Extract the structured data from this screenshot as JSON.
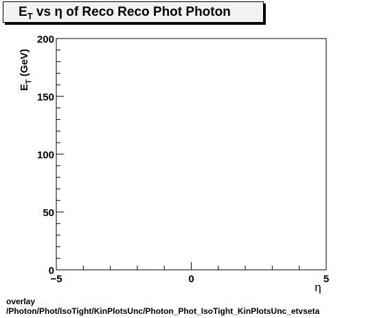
{
  "chart_data": {
    "type": "scatter",
    "title": "E_T vs  η of Reco Reco Phot Photon",
    "title_parts": {
      "main": "E",
      "sub": "T",
      "rest": " vs  η of Reco Reco Phot Photon"
    },
    "xlabel": "η",
    "ylabel_parts": {
      "main": "E",
      "sub": "T",
      "rest": " (GeV)"
    },
    "xlim": [
      -5,
      5
    ],
    "ylim": [
      0,
      200
    ],
    "xticks": [
      -5,
      0,
      5
    ],
    "xtick_labels": [
      "−5",
      "0",
      "5"
    ],
    "yticks": [
      0,
      50,
      100,
      150,
      200
    ],
    "ytick_labels": [
      "0",
      "50",
      "100",
      "150",
      "200"
    ],
    "series": [],
    "grid": false
  },
  "footer": {
    "line1": "overlay",
    "line2": "/Photon/Phot/IsoTight/KinPlotsUnc/Photon_Phot_IsoTight_KinPlotsUnc_etvseta"
  }
}
